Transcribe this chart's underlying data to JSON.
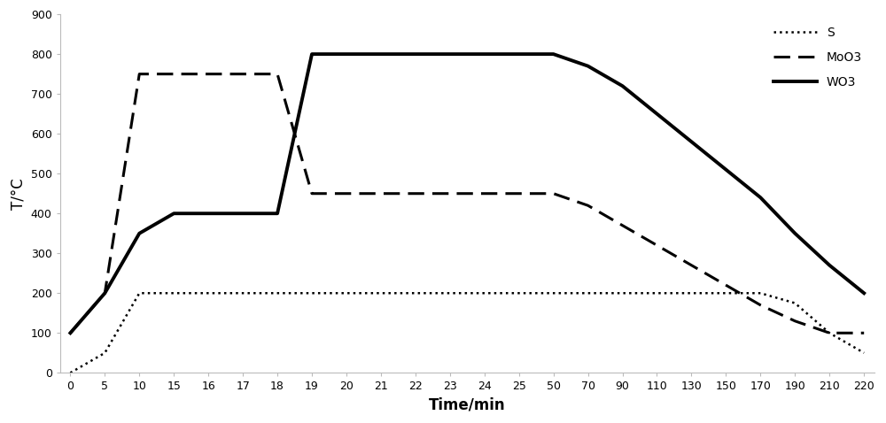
{
  "x_ticks": [
    0,
    5,
    10,
    15,
    16,
    17,
    18,
    19,
    20,
    21,
    22,
    23,
    24,
    25,
    50,
    70,
    90,
    110,
    130,
    150,
    170,
    190,
    210,
    220
  ],
  "S_x": [
    0,
    5,
    10,
    15,
    16,
    17,
    18,
    19,
    20,
    21,
    22,
    23,
    24,
    25,
    50,
    70,
    90,
    110,
    130,
    150,
    170,
    190,
    210,
    220
  ],
  "S_y": [
    0,
    50,
    200,
    200,
    200,
    200,
    200,
    200,
    200,
    200,
    200,
    200,
    200,
    200,
    200,
    200,
    200,
    200,
    200,
    200,
    200,
    175,
    100,
    50
  ],
  "MoO3_x": [
    0,
    5,
    10,
    15,
    16,
    17,
    18,
    18,
    19,
    20,
    21,
    22,
    23,
    24,
    25,
    50,
    70,
    90,
    110,
    130,
    150,
    170,
    190,
    210,
    220
  ],
  "MoO3_y": [
    100,
    200,
    750,
    750,
    750,
    750,
    750,
    750,
    450,
    450,
    450,
    450,
    450,
    450,
    450,
    450,
    420,
    370,
    320,
    270,
    220,
    170,
    130,
    100,
    100
  ],
  "WO3_x": [
    0,
    5,
    10,
    15,
    16,
    17,
    18,
    18,
    19,
    20,
    21,
    22,
    23,
    24,
    25,
    50,
    70,
    90,
    110,
    130,
    150,
    170,
    190,
    210,
    220
  ],
  "WO3_y": [
    100,
    200,
    350,
    400,
    400,
    400,
    400,
    400,
    800,
    800,
    800,
    800,
    800,
    800,
    800,
    800,
    770,
    720,
    650,
    580,
    510,
    440,
    350,
    270,
    200
  ],
  "ylabel": "T/°C",
  "xlabel": "Time/min",
  "ylim": [
    0,
    900
  ],
  "yticks": [
    0,
    100,
    200,
    300,
    400,
    500,
    600,
    700,
    800,
    900
  ],
  "legend_S": "S",
  "legend_MoO3": "MoO3",
  "legend_WO3": "WO3",
  "S_color": "#000000",
  "MoO3_color": "#000000",
  "WO3_color": "#000000",
  "bg_color": "#ffffff",
  "lw_S": 1.8,
  "lw_MoO3": 2.2,
  "lw_WO3": 2.8,
  "fontsize_axis_label": 12,
  "fontsize_ticks": 9,
  "fontsize_legend": 10
}
